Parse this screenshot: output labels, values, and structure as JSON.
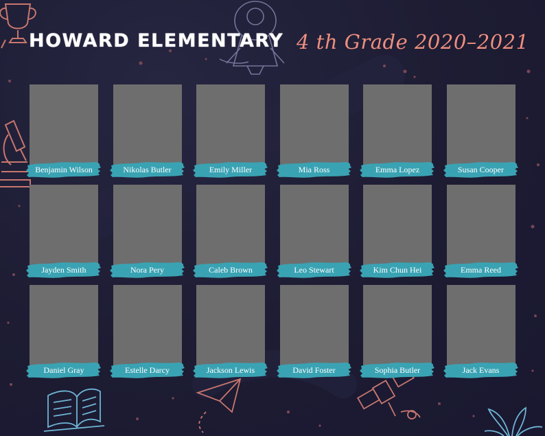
{
  "header": {
    "school": "HOWARD ELEMENTARY",
    "grade_year": "4 th Grade 2020–2021"
  },
  "colors": {
    "background": "#1d1c33",
    "title": "#ffffff",
    "subtitle": "#ef8f7e",
    "photo_placeholder": "#6e6e6e",
    "name_banner": "#3aa3b3",
    "doodle": "#c8776e"
  },
  "decorations": [
    "trophy-icon",
    "rocket-icon",
    "microscope-icon",
    "book-icon",
    "paper-plane-icon",
    "satellite-icon",
    "plant-icon"
  ],
  "students": [
    {
      "name": "Benjamin Wilson"
    },
    {
      "name": "Nikolas Butler"
    },
    {
      "name": "Emily Miller"
    },
    {
      "name": "Mia Ross"
    },
    {
      "name": "Emma Lopez"
    },
    {
      "name": "Susan Cooper"
    },
    {
      "name": "Jayden Smith"
    },
    {
      "name": "Nora Pery"
    },
    {
      "name": "Caleb Brown"
    },
    {
      "name": "Leo Stewart"
    },
    {
      "name": "Kim Chun Hei"
    },
    {
      "name": "Emma Reed"
    },
    {
      "name": "Daniel Gray"
    },
    {
      "name": "Estelle Darcy"
    },
    {
      "name": "Jackson Lewis"
    },
    {
      "name": "David Foster"
    },
    {
      "name": "Sophia Butler"
    },
    {
      "name": "Jack Evans"
    }
  ]
}
